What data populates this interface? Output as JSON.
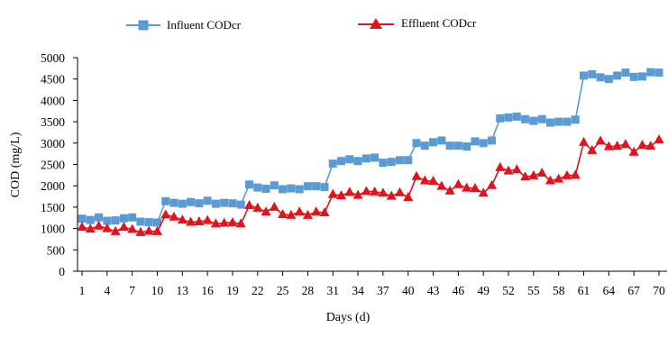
{
  "chart_data": {
    "type": "line",
    "title": "",
    "xlabel": "Days (d)",
    "ylabel": "COD (mg/L)",
    "xlim": [
      1,
      70
    ],
    "ylim": [
      0,
      5000
    ],
    "y_ticks": [
      0,
      500,
      1000,
      1500,
      2000,
      2500,
      3000,
      3500,
      4000,
      4500,
      5000
    ],
    "x_ticks": [
      1,
      4,
      7,
      10,
      13,
      16,
      19,
      22,
      25,
      28,
      31,
      34,
      37,
      40,
      43,
      46,
      49,
      52,
      55,
      58,
      61,
      64,
      67,
      70
    ],
    "grid": false,
    "legend": "top",
    "x": [
      1,
      2,
      3,
      4,
      5,
      6,
      7,
      8,
      9,
      10,
      11,
      12,
      13,
      14,
      15,
      16,
      17,
      18,
      19,
      20,
      21,
      22,
      23,
      24,
      25,
      26,
      27,
      28,
      29,
      30,
      31,
      32,
      33,
      34,
      35,
      36,
      37,
      38,
      39,
      40,
      41,
      42,
      43,
      44,
      45,
      46,
      47,
      48,
      49,
      50,
      51,
      52,
      53,
      54,
      55,
      56,
      57,
      58,
      59,
      60,
      61,
      62,
      63,
      64,
      65,
      66,
      67,
      68,
      69,
      70
    ],
    "series": [
      {
        "name": "Influent CODcr",
        "color": "#5b9bd5",
        "marker": "square",
        "values": [
          1230,
          1200,
          1260,
          1180,
          1190,
          1240,
          1260,
          1160,
          1150,
          1140,
          1640,
          1600,
          1580,
          1620,
          1590,
          1650,
          1580,
          1600,
          1590,
          1560,
          2030,
          1960,
          1930,
          2010,
          1920,
          1940,
          1920,
          1990,
          1990,
          1970,
          2520,
          2580,
          2620,
          2580,
          2640,
          2660,
          2540,
          2560,
          2600,
          2600,
          3000,
          2940,
          3020,
          3060,
          2940,
          2940,
          2920,
          3040,
          3000,
          3060,
          3580,
          3600,
          3620,
          3560,
          3520,
          3560,
          3480,
          3500,
          3500,
          3550,
          4580,
          4610,
          4540,
          4500,
          4580,
          4650,
          4550,
          4560,
          4660,
          4650
        ]
      },
      {
        "name": "Effluent CODcr",
        "color": "#e2131a",
        "marker": "triangle",
        "values": [
          1030,
          990,
          1060,
          1000,
          930,
          1030,
          980,
          910,
          940,
          930,
          1320,
          1270,
          1200,
          1150,
          1160,
          1190,
          1110,
          1130,
          1140,
          1110,
          1540,
          1480,
          1390,
          1500,
          1330,
          1310,
          1390,
          1310,
          1390,
          1370,
          1800,
          1770,
          1850,
          1780,
          1870,
          1860,
          1830,
          1760,
          1840,
          1730,
          2220,
          2120,
          2110,
          1990,
          1880,
          2030,
          1950,
          1940,
          1830,
          2010,
          2430,
          2350,
          2380,
          2210,
          2240,
          2300,
          2120,
          2160,
          2240,
          2250,
          3020,
          2830,
          3050,
          2920,
          2930,
          2970,
          2790,
          2950,
          2930,
          3080
        ]
      }
    ]
  }
}
